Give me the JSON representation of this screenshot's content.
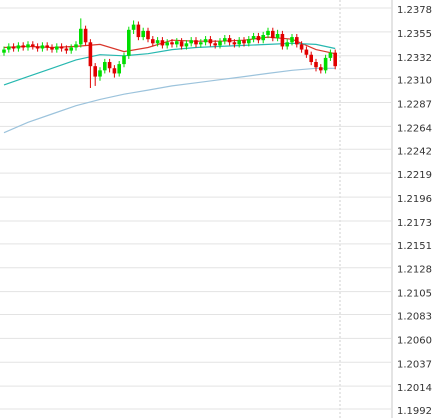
{
  "chart_data": {
    "type": "candlestick",
    "up_color": "#00dd00",
    "down_color": "#e00000",
    "ylim": [
      1.1992,
      1.2378
    ],
    "yticks": [
      1.2378,
      1.2355,
      1.2332,
      {
        "value": 1.231,
        "label": "1.2310"
      },
      1.2287,
      1.2264,
      1.2242,
      1.2219,
      1.2196,
      1.2173,
      1.2151,
      1.2128,
      1.2105,
      1.2083,
      {
        "value": 1.206,
        "label": "1.2060"
      },
      1.2037,
      1.2014,
      1.1992
    ],
    "grid": true,
    "open": [
      1.2335,
      1.2338,
      1.2341,
      1.2339,
      1.2342,
      1.234,
      1.2343,
      1.2341,
      1.2339,
      1.2342,
      1.234,
      1.2338,
      1.2341,
      1.2339,
      1.2337,
      1.234,
      1.2343,
      1.2358,
      1.2345,
      1.2322,
      1.2312,
      1.2318,
      1.2326,
      1.232,
      1.2315,
      1.2324,
      1.2332,
      1.2357,
      1.2362,
      1.235,
      1.2356,
      1.2348,
      1.2344,
      1.2347,
      1.2342,
      1.2345,
      1.2343,
      1.2346,
      1.2341,
      1.2344,
      1.2347,
      1.2343,
      1.2345,
      1.2348,
      1.2344,
      1.2342,
      1.2346,
      1.2349,
      1.2345,
      1.2343,
      1.2347,
      1.2344,
      1.2348,
      1.2351,
      1.2347,
      1.2352,
      1.2356,
      1.2349,
      1.2353,
      1.2341,
      1.2345,
      1.235,
      1.2343,
      1.2338,
      1.2333,
      1.2326,
      1.2321,
      1.2318,
      1.233,
      1.2335
    ],
    "high": [
      1.2341,
      1.2344,
      1.2344,
      1.2345,
      1.2345,
      1.2346,
      1.2346,
      1.2344,
      1.2345,
      1.2345,
      1.2343,
      1.2344,
      1.2344,
      1.2342,
      1.2343,
      1.2346,
      1.2368,
      1.2361,
      1.2348,
      1.2325,
      1.2321,
      1.2329,
      1.2329,
      1.2323,
      1.2327,
      1.2335,
      1.236,
      1.2366,
      1.2365,
      1.2359,
      1.2359,
      1.2351,
      1.235,
      1.235,
      1.2348,
      1.2348,
      1.2349,
      1.2349,
      1.2347,
      1.235,
      1.235,
      1.2348,
      1.2351,
      1.2351,
      1.2347,
      1.2349,
      1.2352,
      1.2352,
      1.2348,
      1.235,
      1.235,
      1.2351,
      1.2354,
      1.2354,
      1.2355,
      1.2359,
      1.2359,
      1.2357,
      1.2356,
      1.2348,
      1.2353,
      1.2353,
      1.2346,
      1.2341,
      1.2336,
      1.2329,
      1.2324,
      1.2333,
      1.2338,
      1.2338
    ],
    "low": [
      1.2332,
      1.2335,
      1.2336,
      1.2336,
      1.2337,
      1.2337,
      1.2338,
      1.2336,
      1.2336,
      1.2337,
      1.2335,
      1.2335,
      1.2336,
      1.2334,
      1.2334,
      1.2337,
      1.234,
      1.2342,
      1.2301,
      1.2303,
      1.2308,
      1.2315,
      1.2316,
      1.2311,
      1.2312,
      1.2321,
      1.2329,
      1.2353,
      1.2347,
      1.2347,
      1.2345,
      1.2341,
      1.2341,
      1.2339,
      1.2339,
      1.234,
      1.234,
      1.2338,
      1.2338,
      1.2341,
      1.234,
      1.234,
      1.2342,
      1.2341,
      1.2339,
      1.2339,
      1.2343,
      1.2342,
      1.234,
      1.234,
      1.2341,
      1.2341,
      1.2345,
      1.2344,
      1.2344,
      1.2349,
      1.2346,
      1.2346,
      1.2338,
      1.2338,
      1.2342,
      1.234,
      1.2335,
      1.233,
      1.2323,
      1.2317,
      1.2315,
      1.2315,
      1.2327,
      1.2319
    ],
    "close": [
      1.2338,
      1.2341,
      1.2339,
      1.2342,
      1.234,
      1.2343,
      1.2341,
      1.2339,
      1.2342,
      1.234,
      1.2338,
      1.2341,
      1.2339,
      1.2337,
      1.234,
      1.2343,
      1.2358,
      1.2345,
      1.2322,
      1.2312,
      1.2318,
      1.2326,
      1.232,
      1.2315,
      1.2324,
      1.2332,
      1.2357,
      1.2362,
      1.235,
      1.2356,
      1.2348,
      1.2344,
      1.2347,
      1.2342,
      1.2345,
      1.2343,
      1.2346,
      1.2341,
      1.2344,
      1.2347,
      1.2343,
      1.2345,
      1.2348,
      1.2344,
      1.2342,
      1.2346,
      1.2349,
      1.2345,
      1.2343,
      1.2347,
      1.2344,
      1.2348,
      1.2351,
      1.2347,
      1.2352,
      1.2356,
      1.2349,
      1.2353,
      1.2341,
      1.2345,
      1.235,
      1.2343,
      1.2338,
      1.2333,
      1.2326,
      1.2321,
      1.2318,
      1.233,
      1.2335,
      1.2322
    ],
    "lines": [
      {
        "color": "#d9362b",
        "x": [
          0,
          5,
          10,
          15,
          20,
          25,
          30,
          35,
          40,
          45,
          50,
          55,
          60,
          65,
          69
        ],
        "values": [
          1.234,
          1.2341,
          1.234,
          1.2341,
          1.2343,
          1.2336,
          1.234,
          1.2347,
          1.2346,
          1.2346,
          1.2347,
          1.235,
          1.2348,
          1.2338,
          1.2334
        ]
      },
      {
        "color": "#27b8b0",
        "x": [
          0,
          5,
          10,
          15,
          20,
          25,
          30,
          35,
          40,
          45,
          50,
          55,
          60,
          65,
          69
        ],
        "values": [
          1.2304,
          1.2312,
          1.232,
          1.2328,
          1.2333,
          1.2332,
          1.2334,
          1.2338,
          1.234,
          1.2341,
          1.2342,
          1.2343,
          1.2344,
          1.2343,
          1.2339
        ]
      },
      {
        "color": "#9cc3dc",
        "x": [
          0,
          5,
          10,
          15,
          20,
          25,
          30,
          35,
          40,
          45,
          50,
          55,
          60,
          65,
          69
        ],
        "values": [
          1.2258,
          1.2268,
          1.2276,
          1.2284,
          1.229,
          1.2295,
          1.2299,
          1.2303,
          1.2306,
          1.2309,
          1.2312,
          1.2315,
          1.2318,
          1.232,
          1.232
        ]
      }
    ]
  }
}
